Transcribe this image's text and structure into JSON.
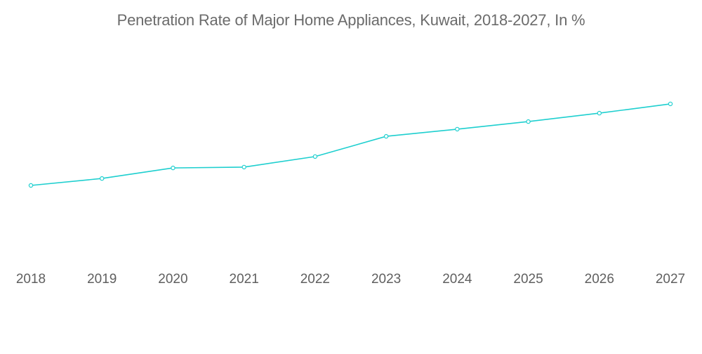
{
  "chart_data": {
    "type": "line",
    "title": "Penetration Rate of Major Home Appliances, Kuwait, 2018-2027, In %",
    "xlabel": "",
    "ylabel": "",
    "categories": [
      "2018",
      "2019",
      "2020",
      "2021",
      "2022",
      "2023",
      "2024",
      "2025",
      "2026",
      "2027"
    ],
    "series": [
      {
        "name": "Penetration Rate",
        "color": "#1ecfcf",
        "values": [
          32.0,
          35.3,
          40.3,
          40.7,
          45.7,
          55.3,
          58.7,
          62.3,
          66.3,
          70.7
        ]
      }
    ],
    "ylim": [
      0,
      100
    ],
    "grid": false,
    "legend": "none",
    "y_axis_visible": false
  }
}
